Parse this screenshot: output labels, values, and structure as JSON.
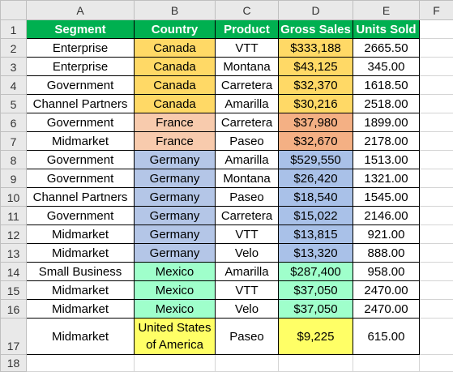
{
  "column_letters": [
    "A",
    "B",
    "C",
    "D",
    "E",
    "F"
  ],
  "row_numbers": [
    1,
    2,
    3,
    4,
    5,
    6,
    7,
    8,
    9,
    10,
    11,
    12,
    13,
    14,
    15,
    16,
    17,
    18
  ],
  "table": {
    "header": [
      "Segment",
      "Country",
      "Product",
      "Gross Sales",
      "Units Sold"
    ],
    "rows": [
      [
        "Enterprise",
        "Canada",
        "VTT",
        "$333,188",
        "2665.50"
      ],
      [
        "Enterprise",
        "Canada",
        "Montana",
        "$43,125",
        "345.00"
      ],
      [
        "Government",
        "Canada",
        "Carretera",
        "$32,370",
        "1618.50"
      ],
      [
        "Channel Partners",
        "Canada",
        "Amarilla",
        "$30,216",
        "2518.00"
      ],
      [
        "Government",
        "France",
        "Carretera",
        "$37,980",
        "1899.00"
      ],
      [
        "Midmarket",
        "France",
        "Paseo",
        "$32,670",
        "2178.00"
      ],
      [
        "Government",
        "Germany",
        "Amarilla",
        "$529,550",
        "1513.00"
      ],
      [
        "Government",
        "Germany",
        "Montana",
        "$26,420",
        "1321.00"
      ],
      [
        "Channel Partners",
        "Germany",
        "Paseo",
        "$18,540",
        "1545.00"
      ],
      [
        "Government",
        "Germany",
        "Carretera",
        "$15,022",
        "2146.00"
      ],
      [
        "Midmarket",
        "Germany",
        "VTT",
        "$13,815",
        "921.00"
      ],
      [
        "Midmarket",
        "Germany",
        "Velo",
        "$13,320",
        "888.00"
      ],
      [
        "Small Business",
        "Mexico",
        "Amarilla",
        "$287,400",
        "958.00"
      ],
      [
        "Midmarket",
        "Mexico",
        "VTT",
        "$37,050",
        "2470.00"
      ],
      [
        "Midmarket",
        "Mexico",
        "Velo",
        "$37,050",
        "2470.00"
      ],
      [
        "Midmarket",
        "United States of America",
        "Paseo",
        "$9,225",
        "615.00"
      ]
    ]
  }
}
